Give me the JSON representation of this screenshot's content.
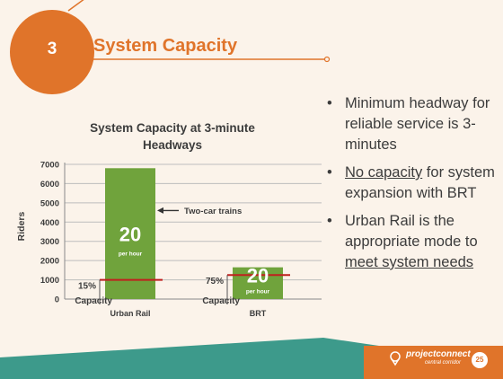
{
  "slide": {
    "number": "3",
    "title": "System Capacity",
    "page": "25",
    "footer_logo": "projectconnect",
    "footer_sub": "central corridor"
  },
  "bullets": [
    {
      "parts": [
        {
          "text": "Minimum headway for reliable service is 3-minutes",
          "u": false
        }
      ]
    },
    {
      "parts": [
        {
          "text": "No capacity",
          "u": true
        },
        {
          "text": " for system expansion with BRT",
          "u": false
        }
      ]
    },
    {
      "parts": [
        {
          "text": "Urban Rail is the appropriate mode to ",
          "u": false
        },
        {
          "text": "meet system needs",
          "u": true
        }
      ]
    }
  ],
  "chart_data": {
    "type": "bar",
    "title": "System Capacity at 3-minute Headways",
    "ylabel": "Riders",
    "ylim": [
      0,
      7000
    ],
    "yticks": [
      0,
      1000,
      2000,
      3000,
      4000,
      5000,
      6000,
      7000
    ],
    "categories": [
      "Urban Rail",
      "BRT"
    ],
    "values": [
      6800,
      1650
    ],
    "bar_labels": [
      "20",
      "20"
    ],
    "bar_sublabels": [
      "per hour",
      "per hour"
    ],
    "reference_lines": [
      {
        "category": "Urban Rail",
        "value": 1000,
        "label": "15%",
        "sublabel": "Capacity"
      },
      {
        "category": "BRT",
        "value": 1250,
        "label": "75%",
        "sublabel": "Capacity"
      }
    ],
    "annotation": {
      "text": "Two-car trains",
      "category": "Urban Rail",
      "value": 4600
    },
    "grid": true,
    "colors": {
      "bar": "#70a33c",
      "reference": "#c0201e",
      "text": "#3c3c3c"
    }
  },
  "colors": {
    "accent": "#e0742a",
    "teal": "#3d9a8b",
    "background": "#fbf3ea"
  }
}
